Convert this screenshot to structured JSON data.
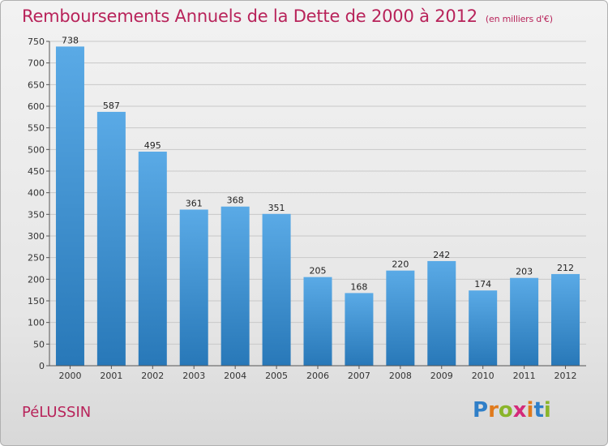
{
  "title": "Remboursements Annuels de la Dette de 2000 à 2012",
  "subtitle": "(en milliers d'€)",
  "commune": "PéLUSSIN",
  "brand": {
    "text": "Proxiti",
    "letters": [
      {
        "ch": "P",
        "color": "#2f7fc8"
      },
      {
        "ch": "r",
        "color": "#e07a1c"
      },
      {
        "ch": "o",
        "color": "#8ab52a"
      },
      {
        "ch": "x",
        "color": "#d42a7a"
      },
      {
        "ch": "i",
        "color": "#e07a1c"
      },
      {
        "ch": "t",
        "color": "#2f7fc8"
      },
      {
        "ch": "i",
        "color": "#8ab52a"
      }
    ]
  },
  "colors": {
    "title": "#b8235a",
    "bar_top": "#5aaae6",
    "bar_bottom": "#2878b8",
    "grid": "#c8c8c8",
    "axis_text": "#333333"
  },
  "chart_data": {
    "type": "bar",
    "categories": [
      "2000",
      "2001",
      "2002",
      "2003",
      "2004",
      "2005",
      "2006",
      "2007",
      "2008",
      "2009",
      "2010",
      "2011",
      "2012"
    ],
    "values": [
      738,
      587,
      495,
      361,
      368,
      351,
      205,
      168,
      220,
      242,
      174,
      203,
      212
    ],
    "ylim": [
      0,
      750
    ],
    "yticks": [
      0,
      50,
      100,
      150,
      200,
      250,
      300,
      350,
      400,
      450,
      500,
      550,
      600,
      650,
      700,
      750
    ],
    "grid": true,
    "data_labels": true
  }
}
